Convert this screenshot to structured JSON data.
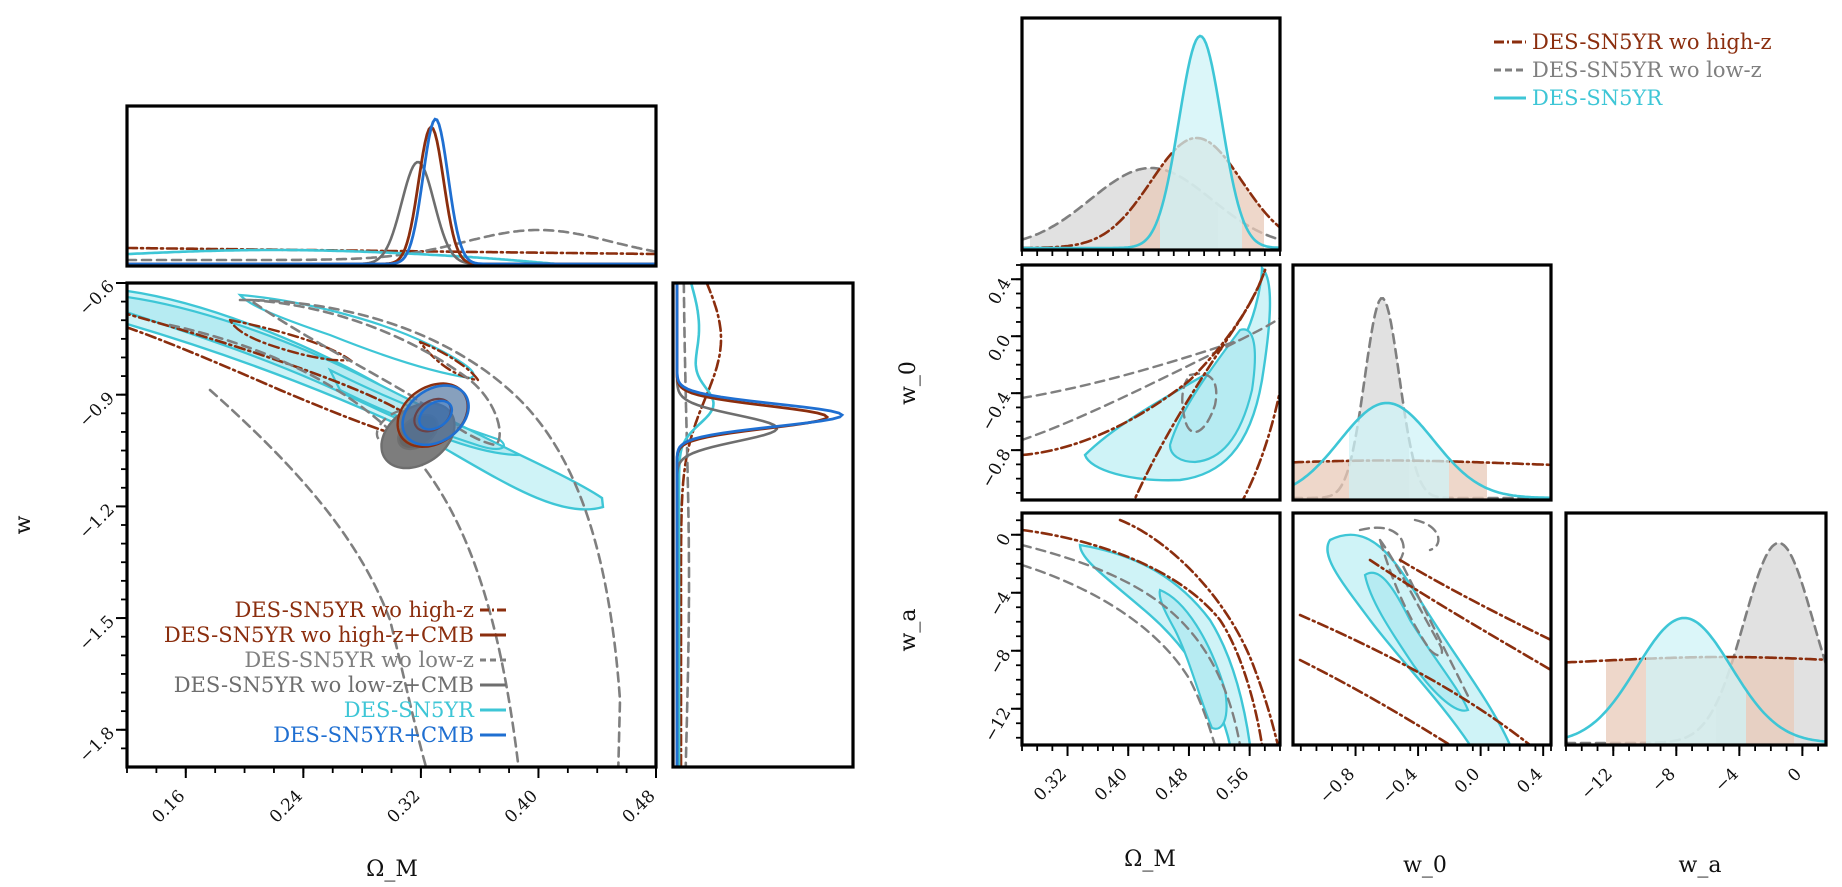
{
  "colors": {
    "highz": "#8B2E0E",
    "highz_cmb": "#8B2E0E",
    "lowz": "#7F7F7F",
    "lowz_cmb": "#6E6E6E",
    "sn5yr": "#3EC6D6",
    "sn5yr_cmb": "#1F6FD1",
    "sn5yr_fill": "#CFF3F7",
    "lowz_fill": "#D7D7D7",
    "highz_fill": "#E8C9B8"
  },
  "chart_data": [
    {
      "type": "line",
      "description_role": "wCDM corner (posterior contours and 1D marginals)",
      "xlabel": "Ω_M",
      "ylabel": "w",
      "xlim": [
        0.12,
        0.48
      ],
      "ylim": [
        -1.9,
        -0.6
      ],
      "xticks": [
        "0.16",
        "0.24",
        "0.32",
        "0.40",
        "0.48"
      ],
      "yticks": [
        "−0.6",
        "−0.9",
        "−1.2",
        "−1.5",
        "−1.8"
      ],
      "legend": {
        "placement": "lower-left",
        "entries": [
          {
            "key": "highz",
            "label": "DES-SN5YR wo high-z",
            "style": "dashdot"
          },
          {
            "key": "highz_cmb",
            "label": "DES-SN5YR wo high-z+CMB",
            "style": "solid"
          },
          {
            "key": "lowz",
            "label": "DES-SN5YR wo low-z",
            "style": "dashed"
          },
          {
            "key": "lowz_cmb",
            "label": "DES-SN5YR wo low-z+CMB",
            "style": "solid"
          },
          {
            "key": "sn5yr",
            "label": "DES-SN5YR",
            "style": "solid"
          },
          {
            "key": "sn5yr_cmb",
            "label": "DES-SN5YR+CMB",
            "style": "solid"
          }
        ]
      },
      "marginal_omega_peaks": {
        "highz_cmb": 0.327,
        "lowz_cmb": 0.318,
        "sn5yr_cmb": 0.33,
        "lowz": 0.4
      }
    },
    {
      "type": "line",
      "description_role": "w0waCDM corner",
      "params": [
        "Ω_M",
        "w_0",
        "w_a"
      ],
      "xlims": {
        "om": [
          0.26,
          0.6
        ],
        "w0": [
          -1.2,
          0.45
        ],
        "wa": [
          -15,
          1.5
        ]
      },
      "ylims": {
        "w0": [
          -1.15,
          0.5
        ],
        "wa": [
          -14.5,
          1.5
        ]
      },
      "xticks": {
        "om": [
          "0.32",
          "0.40",
          "0.48",
          "0.56"
        ],
        "w0": [
          "−0.8",
          "−0.4",
          "0.0",
          "0.4"
        ],
        "wa": [
          "−12",
          "−8",
          "−4",
          "0"
        ]
      },
      "yticks": {
        "w0": [
          "0.4",
          "0.0",
          "−0.4",
          "−0.8"
        ],
        "wa": [
          "0",
          "−4",
          "−8",
          "−12"
        ]
      },
      "axis_labels": {
        "om": "Ω_M",
        "w0": "w_0",
        "wa": "w_a"
      },
      "legend": {
        "placement": "top-right",
        "entries": [
          {
            "key": "highz",
            "label": "DES-SN5YR wo high-z",
            "style": "dashdot"
          },
          {
            "key": "lowz",
            "label": "DES-SN5YR wo low-z",
            "style": "dashed"
          },
          {
            "key": "sn5yr",
            "label": "DES-SN5YR",
            "style": "solid"
          }
        ]
      },
      "marginal_peaks": {
        "om": {
          "sn5yr": 0.495,
          "highz": 0.49,
          "lowz": 0.43
        },
        "w0": {
          "sn5yr": -0.6,
          "lowz": -0.63
        },
        "wa": {
          "sn5yr": -7.5,
          "lowz": -1.5
        }
      }
    }
  ]
}
